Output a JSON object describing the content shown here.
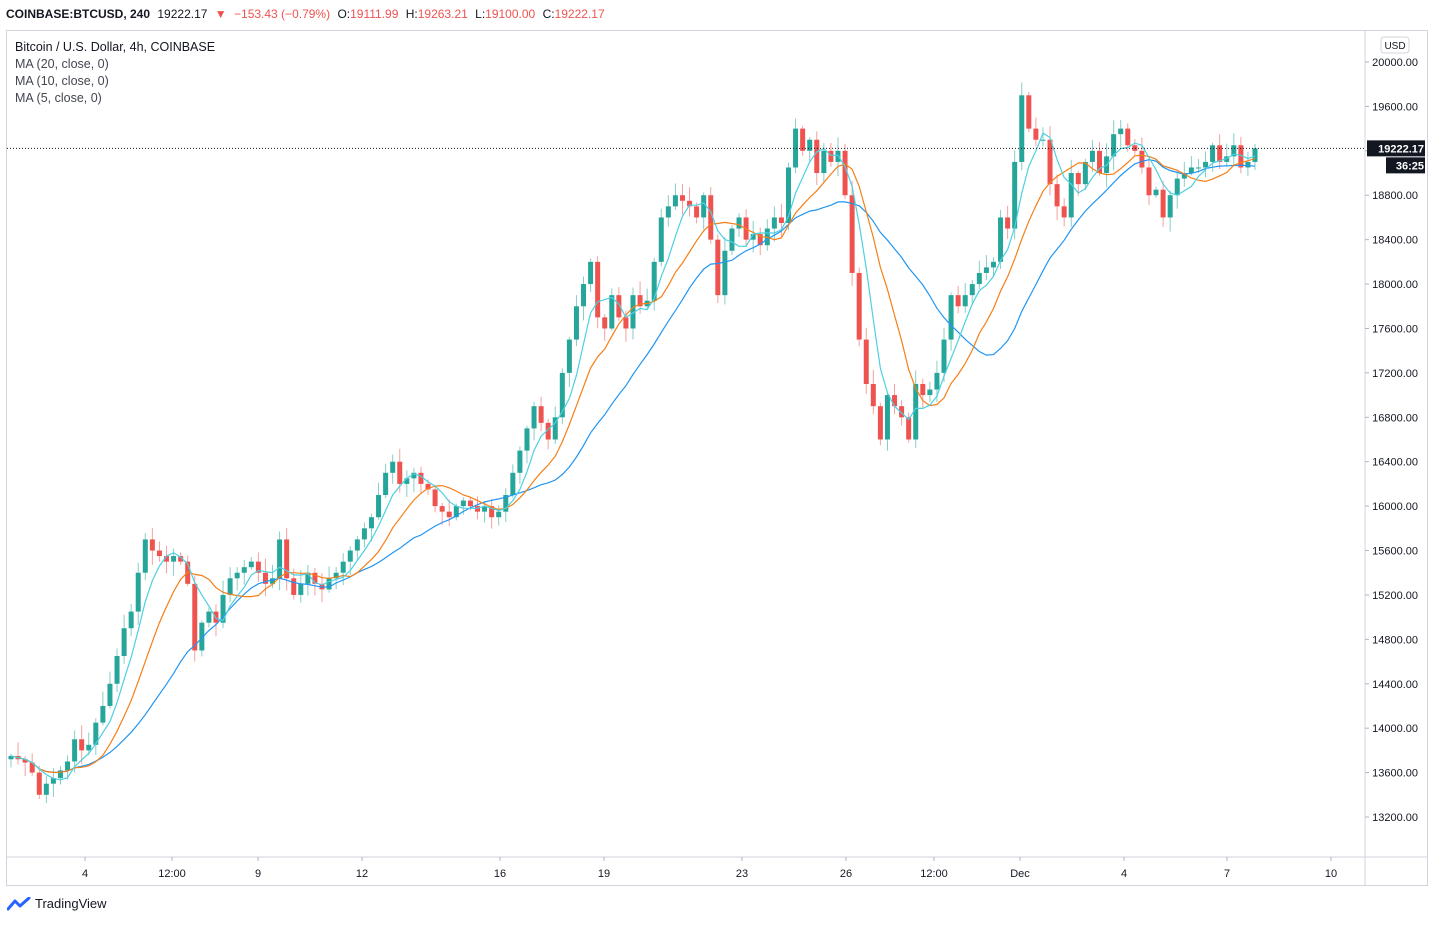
{
  "header": {
    "symbol": "COINBASE:BTCUSD, 240",
    "last": "19222.17",
    "change": "−153.43 (−0.79%)",
    "o_label": "O:",
    "o_value": "19111.99",
    "h_label": "H:",
    "h_value": "19263.21",
    "l_label": "L:",
    "l_value": "19100.00",
    "c_label": "C:",
    "c_value": "19222.17"
  },
  "legend": {
    "title": "Bitcoin / U.S. Dollar, 4h, COINBASE",
    "ma20": "MA (20, close, 0)",
    "ma10": "MA (10, close, 0)",
    "ma5": "MA (5, close, 0)"
  },
  "currency_button": "USD",
  "price_label": "19222.17",
  "countdown_label": "36:25",
  "footer": {
    "brand": "TradingView"
  },
  "colors": {
    "up": "#26a69a",
    "down": "#ef5350",
    "ma20": "#2196f3",
    "ma10": "#f57f17",
    "ma5": "#4dd0e1"
  },
  "chart_data": {
    "type": "candlestick",
    "yticks": [
      "20000.00",
      "19600.00",
      "19200.00",
      "18800.00",
      "18400.00",
      "18000.00",
      "17600.00",
      "17200.00",
      "16800.00",
      "16400.00",
      "16000.00",
      "15600.00",
      "15200.00",
      "14800.00",
      "14400.00",
      "14000.00",
      "13600.00",
      "13200.00"
    ],
    "ylim": [
      12850,
      20250
    ],
    "xticks": [
      "4",
      "12:00",
      "9",
      "12",
      "16",
      "19",
      "23",
      "26",
      "12:00",
      "Dec",
      "4",
      "7",
      "10"
    ],
    "current_price": 19222.17,
    "closes": [
      13750,
      13720,
      13690,
      13600,
      13400,
      13500,
      13550,
      13620,
      13700,
      13900,
      13800,
      13850,
      14050,
      14200,
      14400,
      14650,
      14900,
      15050,
      15400,
      15700,
      15600,
      15550,
      15500,
      15550,
      15500,
      15300,
      14700,
      14950,
      15050,
      14950,
      15200,
      15350,
      15400,
      15450,
      15500,
      15400,
      15300,
      15350,
      15700,
      15350,
      15200,
      15300,
      15400,
      15300,
      15250,
      15350,
      15400,
      15500,
      15600,
      15700,
      15800,
      15900,
      16100,
      16300,
      16400,
      16200,
      16250,
      16300,
      16200,
      16150,
      16000,
      15950,
      15900,
      16000,
      16050,
      16000,
      15950,
      16000,
      15900,
      15950,
      16100,
      16300,
      16500,
      16700,
      16900,
      16750,
      16600,
      16800,
      17200,
      17500,
      17800,
      18000,
      18200,
      17700,
      17600,
      17900,
      17700,
      17600,
      17900,
      17800,
      17850,
      18200,
      18600,
      18700,
      18800,
      18750,
      18700,
      18600,
      18800,
      18400,
      17900,
      18300,
      18500,
      18600,
      18400,
      18450,
      18350,
      18500,
      18600,
      18550,
      19050,
      19400,
      19200,
      19300,
      19000,
      19200,
      19100,
      19200,
      18800,
      18100,
      17500,
      17100,
      16900,
      16600,
      17000,
      16900,
      16800,
      16600,
      17100,
      17000,
      17050,
      17200,
      17500,
      17900,
      17800,
      17900,
      18000,
      18100,
      18150,
      18200,
      18600,
      18500,
      19100,
      19700,
      19400,
      19300,
      19300,
      18900,
      18700,
      18600,
      19000,
      18900,
      19100,
      19200,
      19000,
      19150,
      19350,
      19400,
      19250,
      19200,
      19050,
      18800,
      18850,
      18600,
      18800,
      18950,
      19000,
      19050,
      19050,
      19100,
      19250,
      19100,
      19150,
      19250,
      19050,
      19100,
      19222
    ]
  }
}
